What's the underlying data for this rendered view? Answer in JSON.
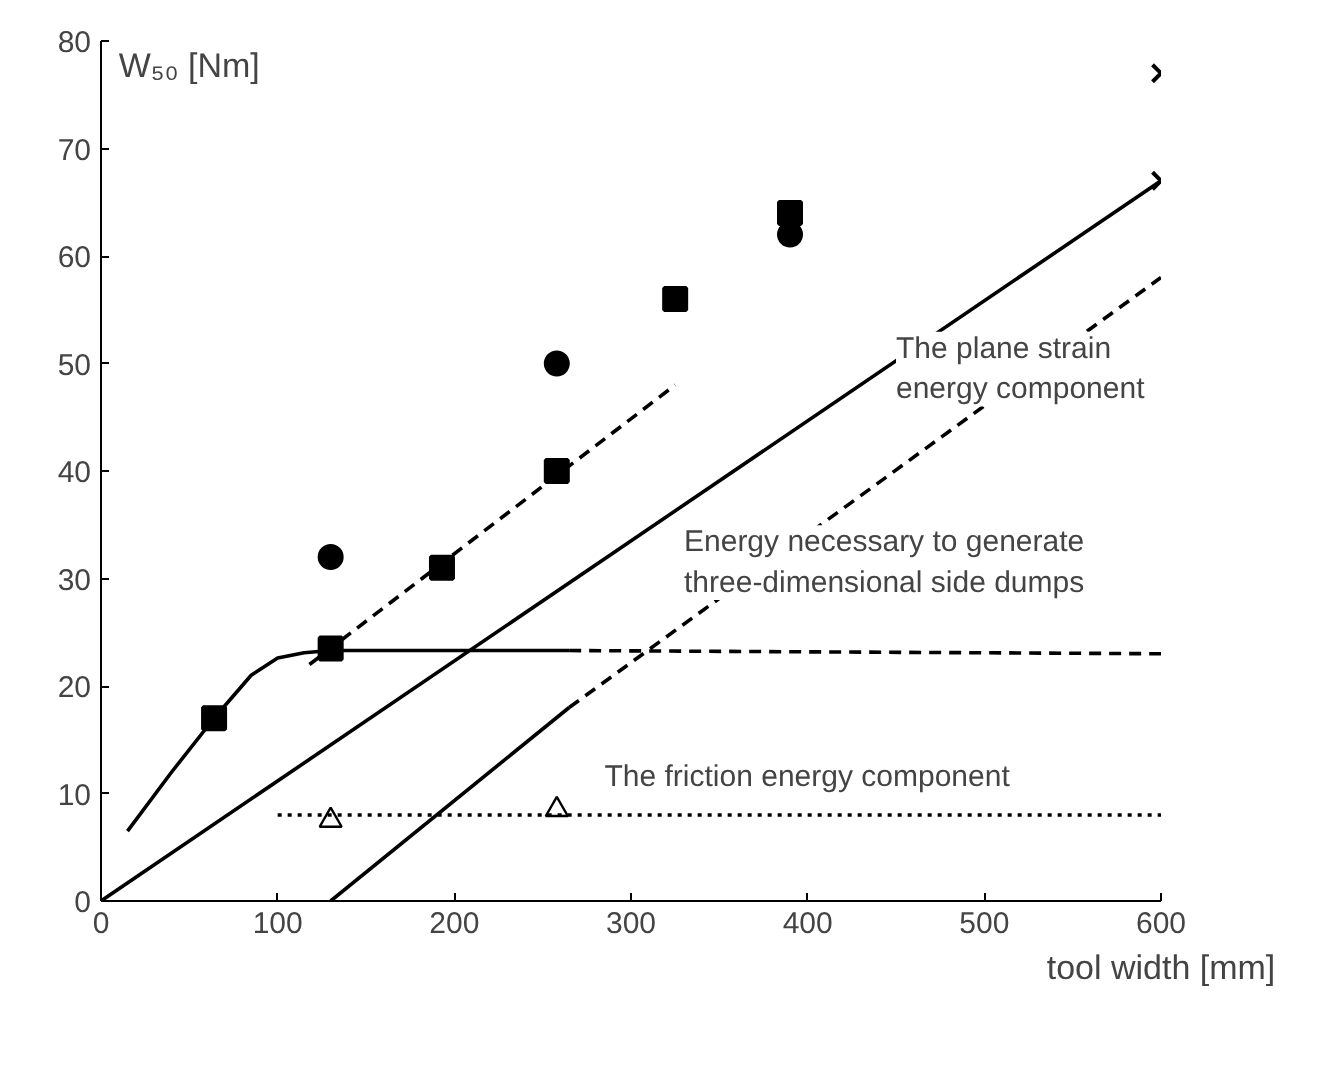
{
  "chart_data": {
    "type": "scatter",
    "ylabel": "W₅₀ [Nm]",
    "xlabel": "tool width [mm]",
    "xlim": [
      0,
      600
    ],
    "ylim": [
      0,
      80
    ],
    "xticks": [
      0,
      100,
      200,
      300,
      400,
      500,
      600
    ],
    "yticks": [
      0,
      10,
      20,
      30,
      40,
      50,
      60,
      70,
      80
    ],
    "grid": false,
    "series": [
      {
        "marker": "square",
        "color": "#000000",
        "x": [
          64,
          130,
          193,
          258,
          325,
          390
        ],
        "values": [
          17,
          23.5,
          31,
          40,
          56,
          64
        ]
      },
      {
        "marker": "circle",
        "color": "#000000",
        "x": [
          130,
          258,
          390
        ],
        "values": [
          32,
          50,
          62
        ]
      },
      {
        "marker": "cross",
        "color": "#000000",
        "x": [
          600,
          600
        ],
        "values": [
          77,
          67
        ]
      },
      {
        "marker": "triangle",
        "color": "#000000",
        "x": [
          130,
          258
        ],
        "values": [
          7.5,
          8.5
        ]
      },
      {
        "type": "line",
        "line_style": "solid",
        "color": "#000000",
        "x": [
          0,
          600
        ],
        "values": [
          0,
          67
        ]
      },
      {
        "type": "line",
        "line_style": "dashed",
        "color": "#000000",
        "x": [
          118,
          325
        ],
        "values": [
          22,
          48
        ]
      },
      {
        "type": "line",
        "line_style": "solid",
        "color": "#000000",
        "x": [
          15,
          40,
          64,
          85,
          100,
          115,
          130,
          265
        ],
        "values": [
          6.5,
          12,
          17,
          21,
          22.6,
          23.1,
          23.3,
          23.3
        ]
      },
      {
        "type": "line",
        "line_style": "dashed",
        "color": "#000000",
        "x": [
          265,
          600
        ],
        "values": [
          23.3,
          23
        ]
      },
      {
        "type": "line",
        "line_style": "dotted",
        "color": "#000000",
        "x": [
          100,
          600
        ],
        "values": [
          8,
          8
        ]
      },
      {
        "type": "line",
        "line_style": "solid",
        "color": "#000000",
        "x": [
          130,
          265
        ],
        "values": [
          0,
          18
        ]
      },
      {
        "type": "line",
        "line_style": "dashed",
        "color": "#000000",
        "x": [
          265,
          600
        ],
        "values": [
          18,
          58
        ]
      }
    ],
    "annotations": [
      "The plane strain\nenergy component",
      "Energy necessary to generate\nthree-dimensional side dumps",
      "The friction energy component"
    ]
  }
}
